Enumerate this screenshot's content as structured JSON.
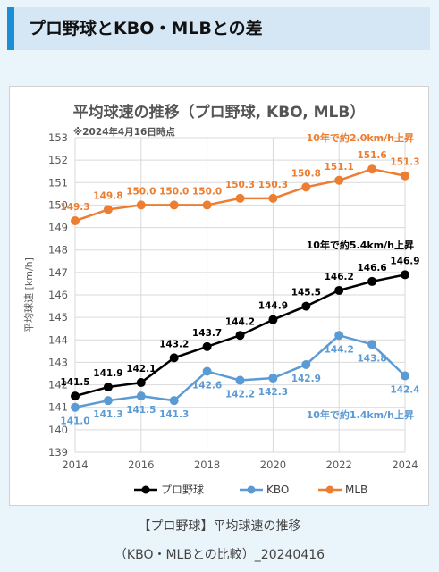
{
  "header": {
    "title": "プロ野球とKBO・MLBとの差"
  },
  "chart_data": {
    "type": "line",
    "title": "平均球速の推移（プロ野球, KBO, MLB）",
    "subtitle": "※2024年4月16日時点",
    "ylabel": "平均球速 [km/h]",
    "xlabel": "",
    "ylim": [
      139,
      153
    ],
    "xlim": [
      2014,
      2024
    ],
    "x": [
      2014,
      2015,
      2016,
      2017,
      2018,
      2019,
      2020,
      2021,
      2022,
      2023,
      2024
    ],
    "x_ticks": [
      2014,
      2016,
      2018,
      2020,
      2022,
      2024
    ],
    "y_ticks": [
      139,
      140,
      141,
      142,
      143,
      144,
      145,
      146,
      147,
      148,
      149,
      150,
      151,
      152,
      153
    ],
    "grid": true,
    "legend_position": "bottom",
    "series": [
      {
        "name": "プロ野球",
        "color": "#000000",
        "values": [
          141.5,
          141.9,
          142.1,
          143.2,
          143.7,
          144.2,
          144.9,
          145.5,
          146.2,
          146.6,
          146.9
        ],
        "labels": [
          "141.5",
          "141.9",
          "142.1",
          "143.2",
          "143.7",
          "144.2",
          "144.9",
          "145.5",
          "146.2",
          "146.6",
          "146.9"
        ]
      },
      {
        "name": "KBO",
        "color": "#5b9bd5",
        "values": [
          141.0,
          141.3,
          141.5,
          141.3,
          142.6,
          142.2,
          142.3,
          142.9,
          144.2,
          143.8,
          142.4
        ],
        "labels": [
          "141.0",
          "141.3",
          "141.5",
          "141.3",
          "142.6",
          "142.2",
          "142.3",
          "142.9",
          "144.2",
          "143.8",
          "142.4"
        ]
      },
      {
        "name": "MLB",
        "color": "#ed7d31",
        "values": [
          149.3,
          149.8,
          150.0,
          150.0,
          150.0,
          150.3,
          150.3,
          150.8,
          151.1,
          151.6,
          151.3
        ],
        "labels": [
          "149.3",
          "149.8",
          "150.0",
          "150.0",
          "150.0",
          "150.3",
          "150.3",
          "150.8",
          "151.1",
          "151.6",
          "151.3"
        ]
      }
    ],
    "annotations": [
      {
        "text": "10年で約2.0km/h上昇",
        "color": "#ed7d31"
      },
      {
        "text": "10年で約5.4km/h上昇",
        "color": "#000000"
      },
      {
        "text": "10年で約1.4km/h上昇",
        "color": "#5b9bd5"
      }
    ]
  },
  "captions": {
    "line1": "【プロ野球】平均球速の推移",
    "line2": "（KBO・MLBとの比較）_20240416"
  }
}
